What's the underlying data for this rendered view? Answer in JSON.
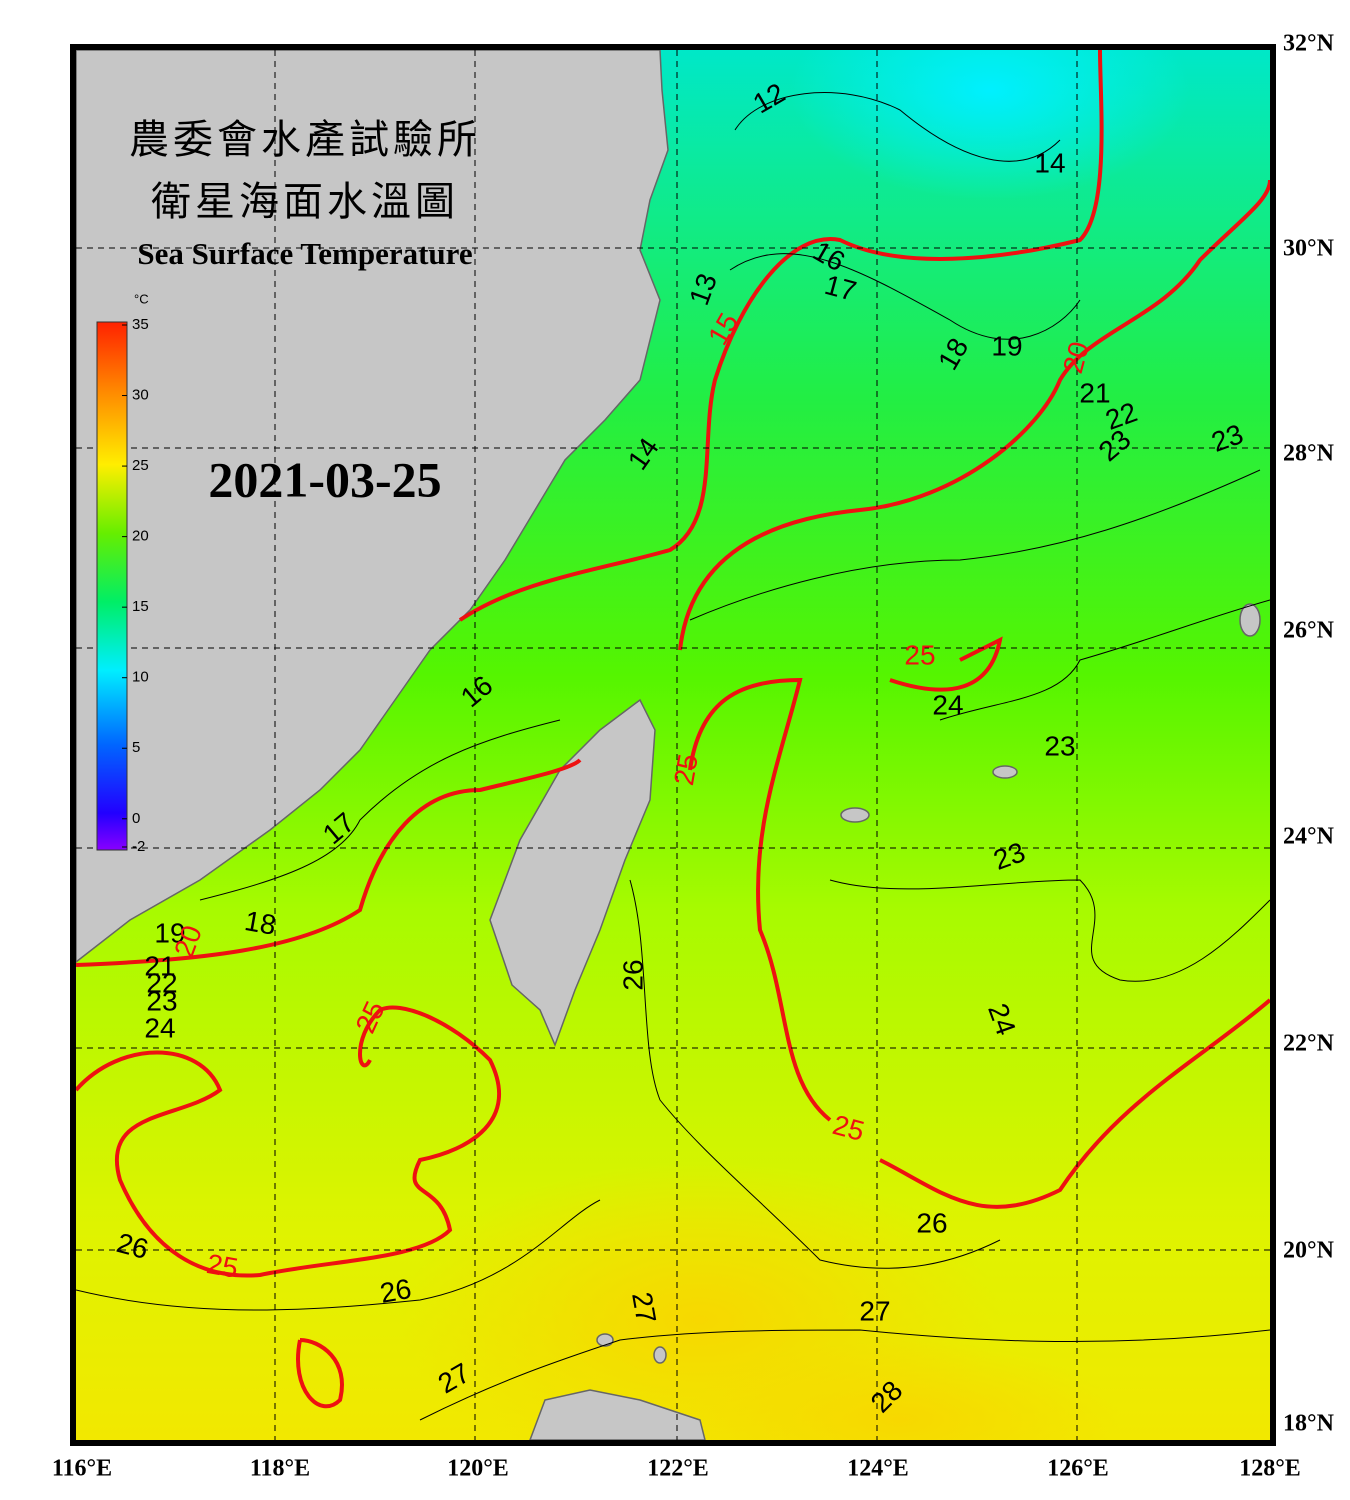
{
  "header": {
    "title_zh": [
      "農委會水產試驗所",
      "衛星海面水溫圖"
    ],
    "title_en": "Sea Surface Temperature",
    "date": "2021-03-25"
  },
  "colorbar": {
    "unit": "°C",
    "ticks": [
      35,
      30,
      25,
      20,
      15,
      10,
      5,
      0,
      -2
    ]
  },
  "lon_labels": [
    "116°E",
    "118°E",
    "120°E",
    "122°E",
    "124°E",
    "126°E",
    "128°E"
  ],
  "lat_labels": [
    "32°N",
    "30°N",
    "28°N",
    "26°N",
    "24°N",
    "22°N",
    "20°N",
    "18°N"
  ],
  "contour_labels": [
    {
      "value": 12,
      "color": "#000000"
    },
    {
      "value": 14,
      "color": "#000000"
    },
    {
      "value": 16,
      "color": "#000000"
    },
    {
      "value": 17,
      "color": "#000000"
    },
    {
      "value": 13,
      "color": "#000000"
    },
    {
      "value": 18,
      "color": "#000000"
    },
    {
      "value": 19,
      "color": "#000000"
    },
    {
      "value": 21,
      "color": "#000000"
    },
    {
      "value": 22,
      "color": "#000000"
    },
    {
      "value": 23,
      "color": "#000000"
    },
    {
      "value": 23,
      "color": "#000000"
    },
    {
      "value": 14,
      "color": "#000000"
    },
    {
      "value": 16,
      "color": "#000000"
    },
    {
      "value": 24,
      "color": "#000000"
    },
    {
      "value": 23,
      "color": "#000000"
    },
    {
      "value": 23,
      "color": "#000000"
    },
    {
      "value": 17,
      "color": "#000000"
    },
    {
      "value": 18,
      "color": "#000000"
    },
    {
      "value": 19,
      "color": "#000000"
    },
    {
      "value": 21,
      "color": "#000000"
    },
    {
      "value": 22,
      "color": "#000000"
    },
    {
      "value": 23,
      "color": "#000000"
    },
    {
      "value": 24,
      "color": "#000000"
    },
    {
      "value": 26,
      "color": "#000000"
    },
    {
      "value": 24,
      "color": "#000000"
    },
    {
      "value": 26,
      "color": "#000000"
    },
    {
      "value": 26,
      "color": "#000000"
    },
    {
      "value": 26,
      "color": "#000000"
    },
    {
      "value": 27,
      "color": "#000000"
    },
    {
      "value": 27,
      "color": "#000000"
    },
    {
      "value": 27,
      "color": "#000000"
    },
    {
      "value": 28,
      "color": "#000000"
    },
    {
      "value": 15,
      "color": "#ee1111"
    },
    {
      "value": 20,
      "color": "#ee1111"
    },
    {
      "value": 25,
      "color": "#ee1111"
    },
    {
      "value": 25,
      "color": "#ee1111"
    },
    {
      "value": 25,
      "color": "#ee1111"
    },
    {
      "value": 25,
      "color": "#ee1111"
    },
    {
      "value": 20,
      "color": "#ee1111"
    },
    {
      "value": 25,
      "color": "#ee1111"
    }
  ]
}
